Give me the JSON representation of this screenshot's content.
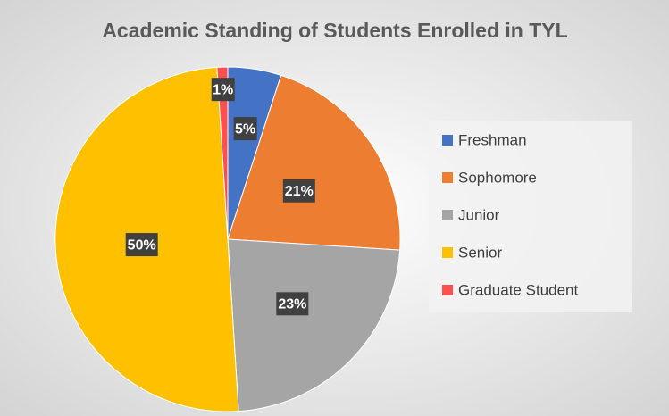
{
  "chart_data": {
    "type": "pie",
    "title": "Academic Standing of Students Enrolled in TYL",
    "categories": [
      "Freshman",
      "Sophomore",
      "Junior",
      "Senior",
      "Graduate Student"
    ],
    "values": [
      5,
      21,
      23,
      50,
      1
    ],
    "value_labels": [
      "5%",
      "21%",
      "23%",
      "50%",
      "1%"
    ],
    "colors": [
      "#4472c4",
      "#ed7d31",
      "#a5a5a5",
      "#ffc000",
      "#ff4f4f"
    ],
    "legend": "right"
  }
}
